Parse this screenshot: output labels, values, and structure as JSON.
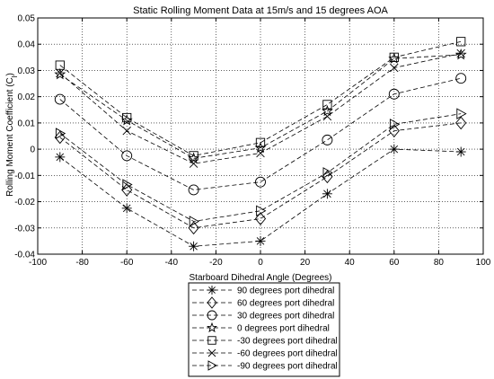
{
  "chart_data": {
    "type": "line",
    "title": "Static Rolling Moment Data at 15m/s and 15 degrees AOA",
    "xlabel": "Starboard Dihedral Angle (Degrees)",
    "ylabel_main": "Rolling Moment Coefficient (C",
    "ylabel_sub": "l",
    "ylabel_close": ")",
    "xlim": [
      -100,
      100
    ],
    "ylim": [
      -0.04,
      0.05
    ],
    "xticks": [
      -100,
      -80,
      -60,
      -40,
      -20,
      0,
      20,
      40,
      60,
      80,
      100
    ],
    "xtick_labels": [
      "-100",
      "-80",
      "-60",
      "-40",
      "-20",
      "0",
      "20",
      "40",
      "60",
      "80",
      "100"
    ],
    "yticks": [
      -0.04,
      -0.03,
      -0.02,
      -0.01,
      0,
      0.01,
      0.02,
      0.03,
      0.04,
      0.05
    ],
    "ytick_labels": [
      "-0.04",
      "-0.03",
      "-0.02",
      "-0.01",
      "0",
      "0.01",
      "0.02",
      "0.03",
      "0.04",
      "0.05"
    ],
    "grid": true,
    "legend_position": "bottom-center-outside",
    "x": [
      -90,
      -60,
      -30,
      0,
      30,
      60,
      90
    ],
    "series": [
      {
        "name": "90 degrees port dihedral",
        "marker": "asterisk",
        "values": [
          -0.003,
          -0.0225,
          -0.037,
          -0.035,
          -0.017,
          0.0,
          -0.001
        ]
      },
      {
        "name": "60 degrees port dihedral",
        "marker": "diamond",
        "values": [
          0.0045,
          -0.0155,
          -0.03,
          -0.0265,
          -0.0105,
          0.007,
          0.01
        ]
      },
      {
        "name": "30 degrees port dihedral",
        "marker": "circle",
        "values": [
          0.019,
          -0.0025,
          -0.0155,
          -0.0125,
          0.0035,
          0.021,
          0.027
        ]
      },
      {
        "name": "0 degrees port dihedral",
        "marker": "star",
        "values": [
          0.0285,
          0.011,
          -0.0035,
          0.0005,
          0.0145,
          0.0345,
          0.036
        ]
      },
      {
        "name": "-30 degrees port dihedral",
        "marker": "square",
        "values": [
          0.032,
          0.012,
          -0.0025,
          0.0025,
          0.017,
          0.035,
          0.041
        ]
      },
      {
        "name": "-60 degrees port dihedral",
        "marker": "x",
        "values": [
          0.029,
          0.007,
          -0.0055,
          -0.0015,
          0.0125,
          0.031,
          0.0365
        ]
      },
      {
        "name": "-90 degrees port dihedral",
        "marker": "triangle-right",
        "values": [
          0.006,
          -0.0135,
          -0.0275,
          -0.0235,
          -0.009,
          0.0095,
          0.0135
        ]
      }
    ]
  }
}
